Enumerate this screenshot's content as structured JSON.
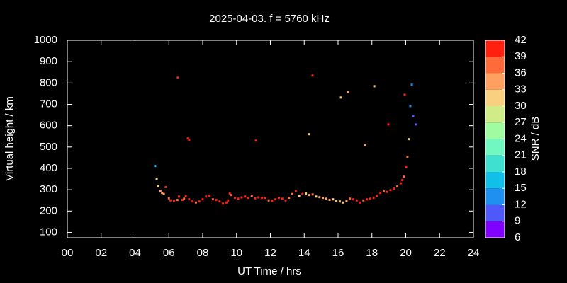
{
  "chart_data": {
    "type": "scatter",
    "title": "2025-04-03. f = 5760 kHz",
    "xlabel": "UT Time / hrs",
    "ylabel": "Virtual height / km",
    "colorbar_label": "SNR / dB",
    "xlim": [
      0,
      24
    ],
    "ylim": [
      75,
      1000
    ],
    "xticks": [
      {
        "value": 0,
        "label": "00"
      },
      {
        "value": 2,
        "label": "02"
      },
      {
        "value": 4,
        "label": "04"
      },
      {
        "value": 6,
        "label": "06"
      },
      {
        "value": 8,
        "label": "08"
      },
      {
        "value": 10,
        "label": "10"
      },
      {
        "value": 12,
        "label": "12"
      },
      {
        "value": 14,
        "label": "14"
      },
      {
        "value": 16,
        "label": "16"
      },
      {
        "value": 18,
        "label": "18"
      },
      {
        "value": 20,
        "label": "20"
      },
      {
        "value": 22,
        "label": "22"
      },
      {
        "value": 24,
        "label": "24"
      }
    ],
    "yticks": [
      100,
      200,
      300,
      400,
      500,
      600,
      700,
      800,
      900,
      1000
    ],
    "clim": [
      6,
      42
    ],
    "cticks": [
      6,
      9,
      12,
      15,
      18,
      21,
      24,
      27,
      30,
      33,
      36,
      39,
      42
    ],
    "colormap": [
      "#8000ff",
      "#4f58f8",
      "#1f8ff0",
      "#10c0e8",
      "#40e0d0",
      "#70f8c0",
      "#a0fca0",
      "#d0ec88",
      "#f8d080",
      "#ffa060",
      "#ff6a3a",
      "#ff2010"
    ],
    "series": [
      {
        "name": "SNR",
        "x": [
          5.19,
          5.28,
          5.36,
          5.5,
          5.6,
          5.7,
          5.82,
          6.0,
          6.1,
          6.3,
          6.5,
          6.6,
          6.8,
          6.9,
          7.0,
          7.2,
          7.4,
          7.6,
          7.8,
          8.0,
          8.2,
          8.4,
          8.6,
          8.8,
          9.0,
          9.2,
          9.4,
          9.5,
          9.6,
          9.7,
          9.9,
          10.1,
          10.3,
          10.5,
          10.7,
          10.9,
          11.1,
          11.3,
          11.5,
          11.7,
          11.9,
          12.1,
          12.3,
          12.5,
          12.7,
          12.9,
          13.1,
          13.3,
          13.5,
          13.7,
          13.9,
          14.1,
          14.3,
          14.5,
          14.7,
          14.9,
          15.1,
          15.3,
          15.5,
          15.7,
          15.9,
          16.1,
          16.3,
          16.5,
          16.7,
          16.9,
          17.1,
          17.3,
          17.5,
          17.7,
          17.9,
          18.1,
          18.3,
          18.5,
          18.7,
          18.9,
          19.1,
          19.3,
          19.5,
          19.7,
          19.8,
          19.9,
          20.02,
          20.1,
          20.19,
          20.27,
          20.36,
          20.44,
          20.6,
          6.53,
          7.12,
          7.2,
          11.14,
          14.28,
          14.49,
          16.17,
          16.59,
          17.59,
          18.14,
          18.97,
          19.94
        ],
        "values": [
          411,
          352,
          318,
          295,
          285,
          280,
          312,
          260,
          250,
          248,
          252,
          268,
          252,
          258,
          270,
          255,
          245,
          240,
          245,
          255,
          268,
          272,
          255,
          252,
          245,
          235,
          240,
          250,
          282,
          275,
          262,
          258,
          264,
          268,
          262,
          272,
          260,
          264,
          262,
          262,
          250,
          248,
          255,
          262,
          258,
          250,
          262,
          280,
          295,
          270,
          280,
          282,
          275,
          278,
          268,
          265,
          262,
          258,
          252,
          255,
          248,
          245,
          240,
          248,
          258,
          255,
          250,
          240,
          250,
          255,
          258,
          262,
          272,
          285,
          292,
          290,
          298,
          305,
          315,
          330,
          345,
          361,
          408,
          454,
          537,
          692,
          792,
          646,
          606,
          825,
          540,
          533,
          530,
          560,
          835,
          732,
          758,
          510,
          785,
          606,
          745
        ],
        "snr": [
          15,
          31,
          31,
          33,
          34,
          33,
          39,
          38,
          39,
          39,
          38,
          40,
          39,
          38,
          39,
          40,
          39,
          38,
          39,
          40,
          40,
          39,
          38,
          39,
          40,
          39,
          40,
          39,
          40,
          38,
          39,
          40,
          39,
          40,
          39,
          38,
          40,
          39,
          39,
          40,
          38,
          39,
          40,
          39,
          40,
          39,
          38,
          37,
          39,
          31,
          39,
          31,
          33,
          38,
          31,
          34,
          33,
          34,
          33,
          32,
          31,
          30,
          31,
          34,
          38,
          39,
          40,
          39,
          38,
          39,
          40,
          39,
          39,
          40,
          38,
          39,
          40,
          39,
          38,
          40,
          39,
          38,
          40,
          36,
          30,
          14,
          14,
          11,
          10,
          40,
          40,
          40,
          40,
          31,
          40,
          31,
          33,
          33,
          32,
          40,
          40
        ]
      }
    ]
  }
}
